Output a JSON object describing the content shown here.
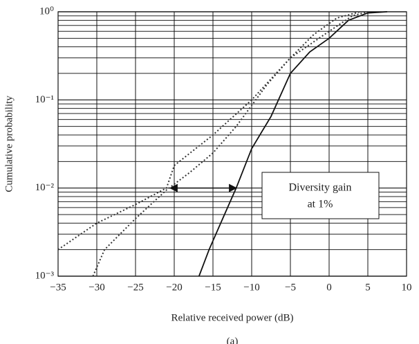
{
  "chart_data": {
    "type": "line",
    "subtitle": "(a)",
    "x_label": "Relative received power (dB)",
    "y_label": "Cumulative probability",
    "xlim": [
      -35,
      10
    ],
    "xticks": [
      {
        "value": -35,
        "label": "−35"
      },
      {
        "value": -30,
        "label": "−30"
      },
      {
        "value": -25,
        "label": "−25"
      },
      {
        "value": -20,
        "label": "−20"
      },
      {
        "value": -15,
        "label": "−15"
      },
      {
        "value": -10,
        "label": "−10"
      },
      {
        "value": -5,
        "label": "−5"
      },
      0,
      5,
      10
    ],
    "ylim": [
      0.001,
      1
    ],
    "y_log_scale": true,
    "yticks": [
      {
        "value": 0.001,
        "label": "10⁻³"
      },
      {
        "value": 0.01,
        "label": "10⁻²"
      },
      {
        "value": 0.1,
        "label": "10⁻¹"
      },
      {
        "value": 1,
        "label": "10⁰"
      }
    ],
    "y_minor_grid": [
      0.002,
      0.003,
      0.004,
      0.005,
      0.006,
      0.007,
      0.008,
      0.009,
      0.02,
      0.03,
      0.04,
      0.05,
      0.06,
      0.07,
      0.08,
      0.09,
      0.2,
      0.3,
      0.4,
      0.5,
      0.6,
      0.7,
      0.8,
      0.9
    ],
    "grid": true,
    "series": [
      {
        "color": "#333333",
        "style": "dotted",
        "x": [
          -35,
          -30,
          -25,
          -21,
          -20,
          -15,
          -10,
          -5,
          0,
          3,
          5
        ],
        "values": [
          0.002,
          0.004,
          0.0065,
          0.01,
          0.018,
          0.04,
          0.1,
          0.3,
          0.6,
          0.9,
          1
        ]
      },
      {
        "color": "#333333",
        "style": "dotted",
        "x": [
          -30.5,
          -29,
          -25,
          -21,
          -18,
          -15,
          -12,
          -8,
          -5,
          -2,
          1,
          4
        ],
        "values": [
          0.001,
          0.002,
          0.0045,
          0.0095,
          0.015,
          0.025,
          0.05,
          0.15,
          0.3,
          0.55,
          0.85,
          1
        ]
      },
      {
        "color": "#111111",
        "style": "solid",
        "x": [
          -16.8,
          -15.5,
          -14,
          -12,
          -10,
          -7.5,
          -5,
          -2.5,
          0,
          2.5,
          5,
          7.5
        ],
        "values": [
          0.001,
          0.002,
          0.004,
          0.01,
          0.028,
          0.065,
          0.2,
          0.35,
          0.5,
          0.8,
          0.97,
          1
        ]
      }
    ],
    "annotation": {
      "lines": [
        "Diversity gain",
        "at 1%"
      ],
      "arrow_x": [
        -20.5,
        -12
      ],
      "arrow_y": 0.01
    }
  }
}
